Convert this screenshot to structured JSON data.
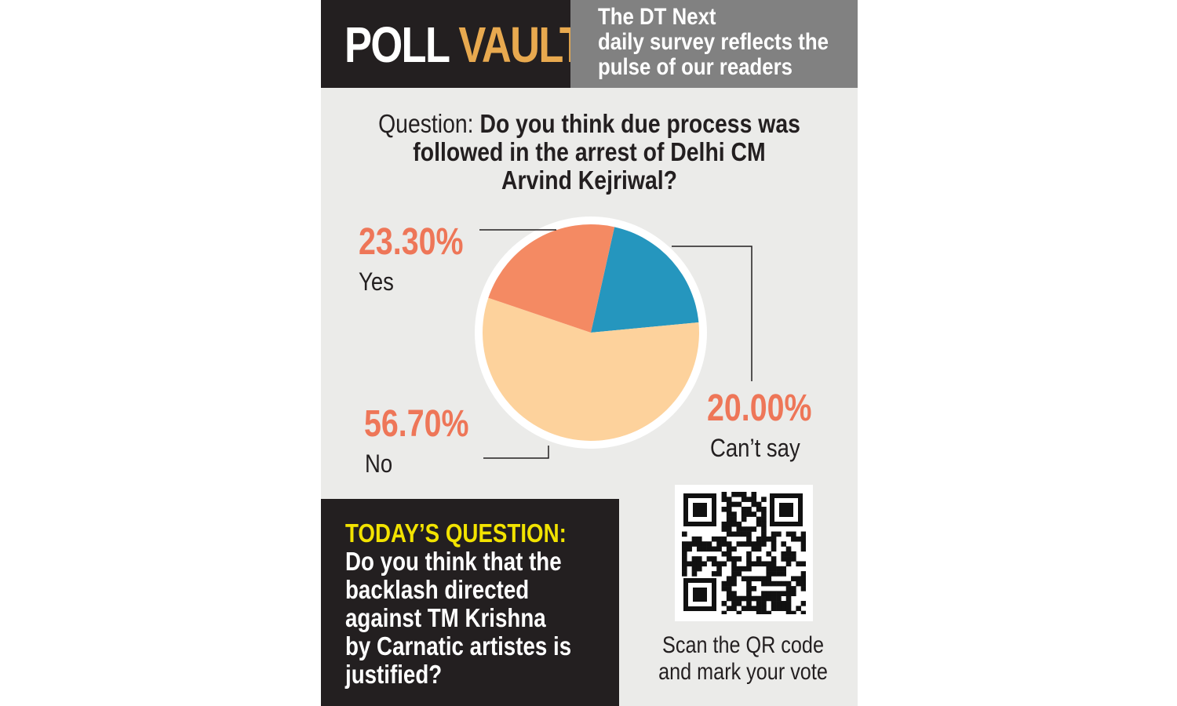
{
  "header": {
    "brand_poll": "POLL",
    "brand_vault": "VAULT",
    "tagline_lines": [
      "The DT Next",
      "daily survey reflects the",
      "pulse of our readers"
    ]
  },
  "question": {
    "label": "Question:",
    "lines": [
      "Do you think due process was",
      "followed in the arrest of Delhi CM",
      "Arvind Kejriwal?"
    ]
  },
  "chart_data": {
    "type": "pie",
    "slices": [
      {
        "label": "Can’t say",
        "value": 20.0,
        "display": "20.00%",
        "color": "#2596be"
      },
      {
        "label": "No",
        "value": 56.7,
        "display": "56.70%",
        "color": "#fdd29c"
      },
      {
        "label": "Yes",
        "value": 23.3,
        "display": "23.30%",
        "color": "#f48a63"
      }
    ],
    "label_color": "#ee7658",
    "legend": "none"
  },
  "today": {
    "title": "TODAY’S QUESTION:",
    "lines": [
      "Do you think that the",
      "backlash directed",
      "against TM Krishna",
      "by Carnatic artistes is",
      "justified?"
    ]
  },
  "qr": {
    "icon": "qr-code-icon",
    "caption_lines": [
      "Scan the QR code",
      "and mark your vote"
    ]
  },
  "colors": {
    "header_dark": "#231f20",
    "header_grey": "#818181",
    "accent_gold": "#e8a94f",
    "accent_yellow": "#f2e300",
    "background": "#ebebe9"
  }
}
